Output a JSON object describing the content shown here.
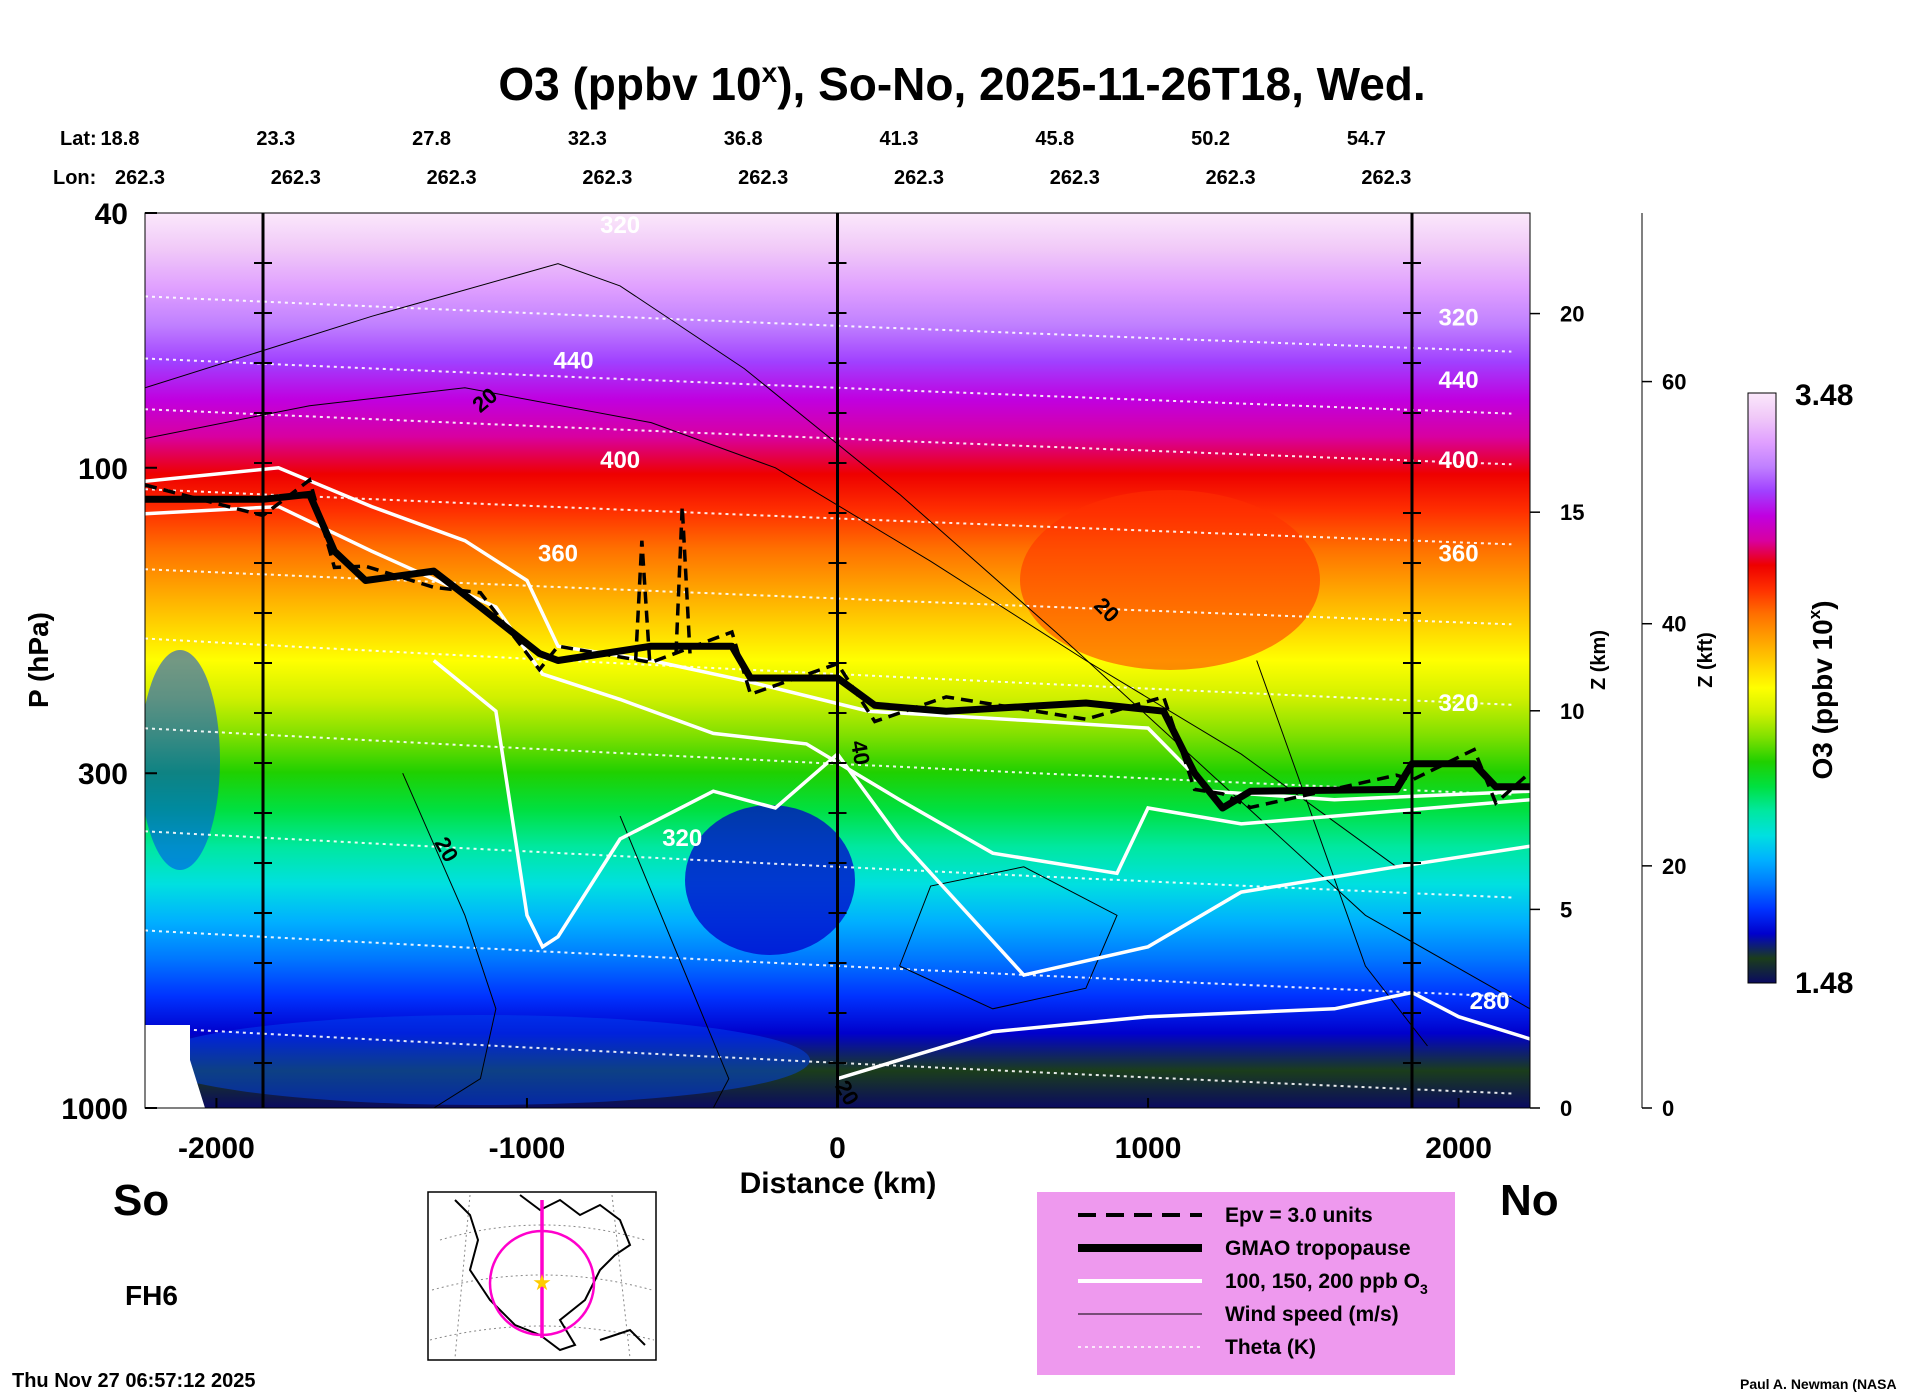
{
  "chart_data": {
    "type": "heatmap",
    "title": "O3 (ppbv 10",
    "title_superscript": "x",
    "title_suffix": "), So-No, 2025-11-26T18, Wed.",
    "xlabel": "Distance (km)",
    "ylabel": "P (hPa)",
    "x_range": [
      -2230,
      2230
    ],
    "x_ticks": [
      -2000,
      -1000,
      0,
      1000,
      2000
    ],
    "y_range_hpa": [
      1000,
      40
    ],
    "y_ticks_hpa": [
      40,
      100,
      300,
      1000
    ],
    "z_km_label": "Z (km)",
    "z_km_ticks": [
      0,
      5,
      10,
      15,
      20
    ],
    "z_kft_label": "Z (kft)",
    "z_kft_ticks": [
      0,
      20,
      40,
      60
    ],
    "lat_label": "Lat:",
    "lon_label": "Lon:",
    "lat": [
      "18.8",
      "23.3",
      "27.8",
      "32.3",
      "36.8",
      "41.3",
      "45.8",
      "50.2",
      "54.7"
    ],
    "lon": [
      "262.3",
      "262.3",
      "262.3",
      "262.3",
      "262.3",
      "262.3",
      "262.3",
      "262.3",
      "262.3"
    ],
    "marker_lines_km": [
      -1850,
      0,
      1850
    ],
    "colorbar": {
      "label": "O3 (ppbv 10",
      "label_sup": "x",
      "label_suffix": ")",
      "min": "1.48",
      "max": "3.48",
      "colors": [
        "#0a0a60",
        "#1b3d1b",
        "#0000cc",
        "#0033ff",
        "#0077ff",
        "#00b0ff",
        "#00e0e0",
        "#00e8a0",
        "#00e040",
        "#20d000",
        "#80e000",
        "#d0f000",
        "#ffff00",
        "#ffd000",
        "#ffa000",
        "#ff7000",
        "#ff3000",
        "#ee0000",
        "#d800a0",
        "#c000e0",
        "#a040ff",
        "#c080ff",
        "#e0a0ff",
        "#f0c8f8",
        "#fbe8fb"
      ]
    },
    "tropopause": [
      [
        -2230,
        112
      ],
      [
        -1850,
        112
      ],
      [
        -1700,
        110
      ],
      [
        -1620,
        135
      ],
      [
        -1520,
        150
      ],
      [
        -1300,
        145
      ],
      [
        -1150,
        165
      ],
      [
        -960,
        195
      ],
      [
        -900,
        200
      ],
      [
        -600,
        190
      ],
      [
        -340,
        190
      ],
      [
        -280,
        213
      ],
      [
        0,
        213
      ],
      [
        120,
        235
      ],
      [
        350,
        240
      ],
      [
        800,
        233
      ],
      [
        1050,
        240
      ],
      [
        1150,
        300
      ],
      [
        1240,
        340
      ],
      [
        1330,
        320
      ],
      [
        1800,
        318
      ],
      [
        1850,
        290
      ],
      [
        2050,
        290
      ],
      [
        2120,
        315
      ],
      [
        2230,
        315
      ]
    ],
    "theta_contour_labels": [
      "320",
      "440",
      "400",
      "360",
      "320",
      "320",
      "440",
      "400",
      "360",
      "320",
      "280"
    ],
    "wind_contour_labels": [
      "20",
      "20",
      "20",
      "40",
      "20"
    ],
    "side_labels": {
      "south": "So",
      "north": "No"
    },
    "forecast_hour": "FH6",
    "timestamp": "Thu Nov 27 06:57:12 2025",
    "credit": "Paul A. Newman (NASA",
    "legend": [
      {
        "label": "Epv = 3.0 units",
        "style": "dashed"
      },
      {
        "label": "GMAO tropopause",
        "style": "thick"
      },
      {
        "label": "100, 150, 200 ppb O",
        "sub": "3",
        "style": "white"
      },
      {
        "label": "Wind speed (m/s)",
        "style": "thin"
      },
      {
        "label": "Theta (K)",
        "style": "dotted"
      }
    ],
    "legend_bg": "#ee99ee",
    "map_line_color": "#ff00cc",
    "map_star_color": "#ffcc00"
  }
}
